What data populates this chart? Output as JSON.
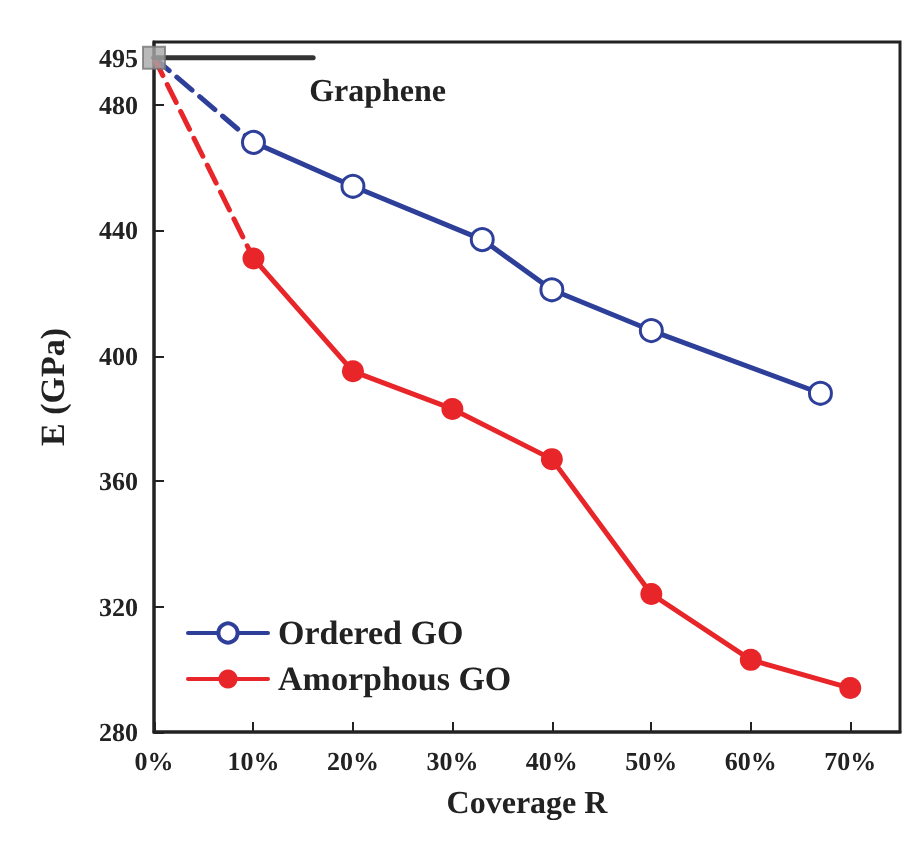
{
  "chart_data": {
    "type": "line",
    "xlabel": "Coverage R",
    "ylabel": "E (GPa)",
    "xlim": [
      0,
      75
    ],
    "xticks": [
      {
        "value": 0,
        "label": "0%"
      },
      {
        "value": 10,
        "label": "10%"
      },
      {
        "value": 20,
        "label": "20%"
      },
      {
        "value": 30,
        "label": "30%"
      },
      {
        "value": 40,
        "label": "40%"
      },
      {
        "value": 50,
        "label": "50%"
      },
      {
        "value": 60,
        "label": "60%"
      },
      {
        "value": 70,
        "label": "70%"
      }
    ],
    "ylim": [
      280,
      500
    ],
    "yticks": [
      280,
      320,
      360,
      400,
      440,
      480,
      495
    ],
    "grid": false,
    "legend": "bottom left",
    "series": [
      {
        "name": "Ordered GO",
        "color": "#2e3f9a",
        "marker": "circle",
        "line_style": "solid",
        "x": [
          10,
          20,
          33,
          40,
          50,
          67
        ],
        "values": [
          468,
          454,
          437,
          421,
          408,
          388
        ]
      },
      {
        "name": "Amorphous GO",
        "color": "#e8262a",
        "marker": "circle",
        "line_style": "solid",
        "x": [
          10,
          20,
          30,
          40,
          50,
          60,
          70
        ],
        "values": [
          431,
          395,
          383,
          367,
          324,
          303,
          294
        ]
      },
      {
        "color": "#2e3f9a",
        "marker": "none",
        "line_style": "dashed",
        "x": [
          0,
          10
        ],
        "values": [
          495,
          468
        ]
      },
      {
        "color": "#e8262a",
        "marker": "none",
        "line_style": "dashed",
        "x": [
          0,
          10
        ],
        "values": [
          495,
          431
        ]
      },
      {
        "name": "Graphene",
        "color": "#333333",
        "marker": "none",
        "line_style": "solid",
        "x": [
          0,
          16
        ],
        "values": [
          495,
          495
        ]
      },
      {
        "type": "scatter",
        "color": "#a8a8a8",
        "marker": "square",
        "x": [
          0
        ],
        "values": [
          495
        ]
      }
    ]
  }
}
